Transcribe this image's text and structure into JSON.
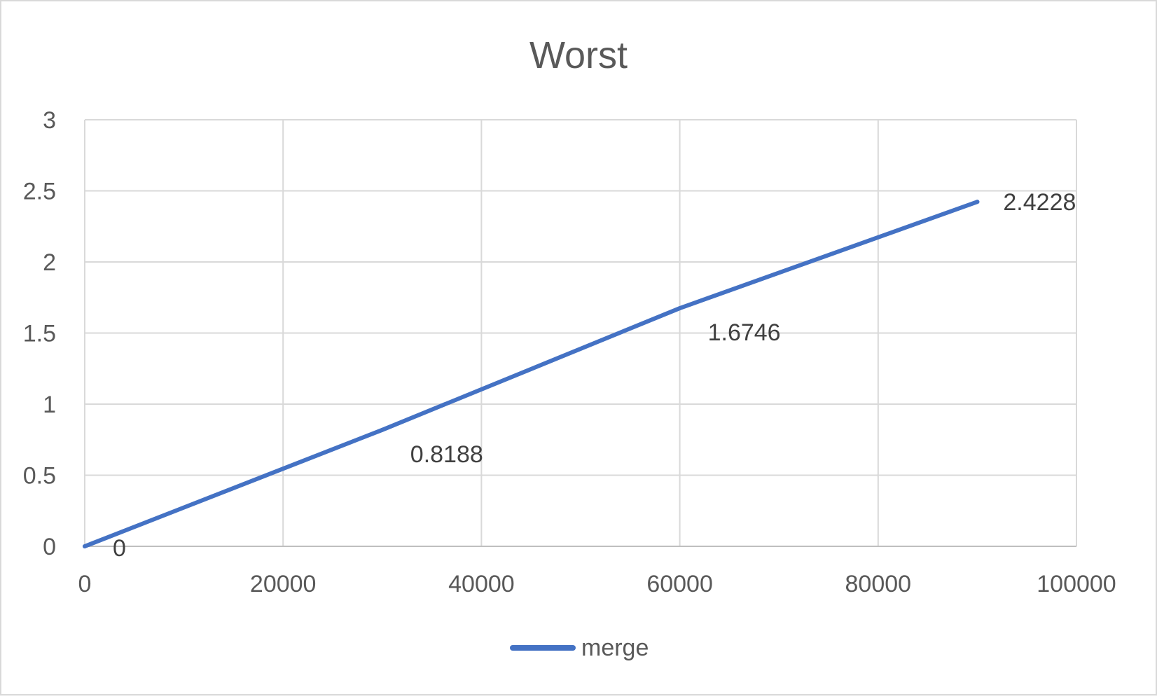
{
  "chart_data": {
    "type": "line",
    "title": "Worst",
    "xlabel": "",
    "ylabel": "",
    "xlim": [
      0,
      100000
    ],
    "ylim": [
      0,
      3
    ],
    "x_ticks": [
      "0",
      "20000",
      "40000",
      "60000",
      "80000",
      "100000"
    ],
    "y_ticks": [
      "0",
      "0.5",
      "1",
      "1.5",
      "2",
      "2.5",
      "3"
    ],
    "grid": true,
    "legend_position": "bottom",
    "series": [
      {
        "name": "merge",
        "color": "#4472C4",
        "x": [
          0,
          30000,
          60000,
          90000
        ],
        "y": [
          0,
          0.8188,
          1.6746,
          2.4228
        ],
        "labels": [
          "0",
          "0.8188",
          "1.6746",
          "2.4228"
        ]
      }
    ]
  }
}
